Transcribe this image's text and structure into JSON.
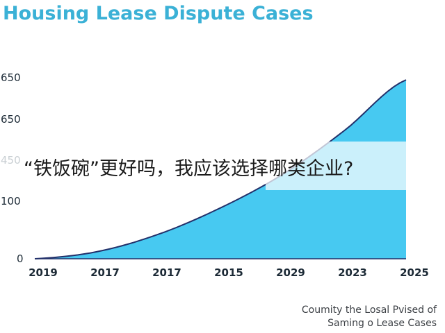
{
  "title": "Housing Lease Dispute Cases",
  "overlay_text": "“铁饭碗”更好吗，我应该选择哪类企业?",
  "caption": {
    "line1": "Coumity the Losal Pvised of",
    "line2": "Saming o Lease Cases"
  },
  "colors": {
    "title": "#3bb1d6",
    "area_fill": "#47c9f1",
    "line": "#22306a"
  },
  "chart_data": {
    "type": "area",
    "title": "Housing Lease Dispute Cases",
    "categories": [
      "2019",
      "2017",
      "2017",
      "2015",
      "2029",
      "2023",
      "2025"
    ],
    "y_tick_labels": [
      "0",
      "100",
      "450",
      "650",
      "650"
    ],
    "series": [
      {
        "values": [
          0,
          20,
          70,
          145,
          240,
          365,
          510
        ]
      }
    ],
    "ylim": [
      0,
      530
    ],
    "grid": false,
    "legend": "none"
  }
}
